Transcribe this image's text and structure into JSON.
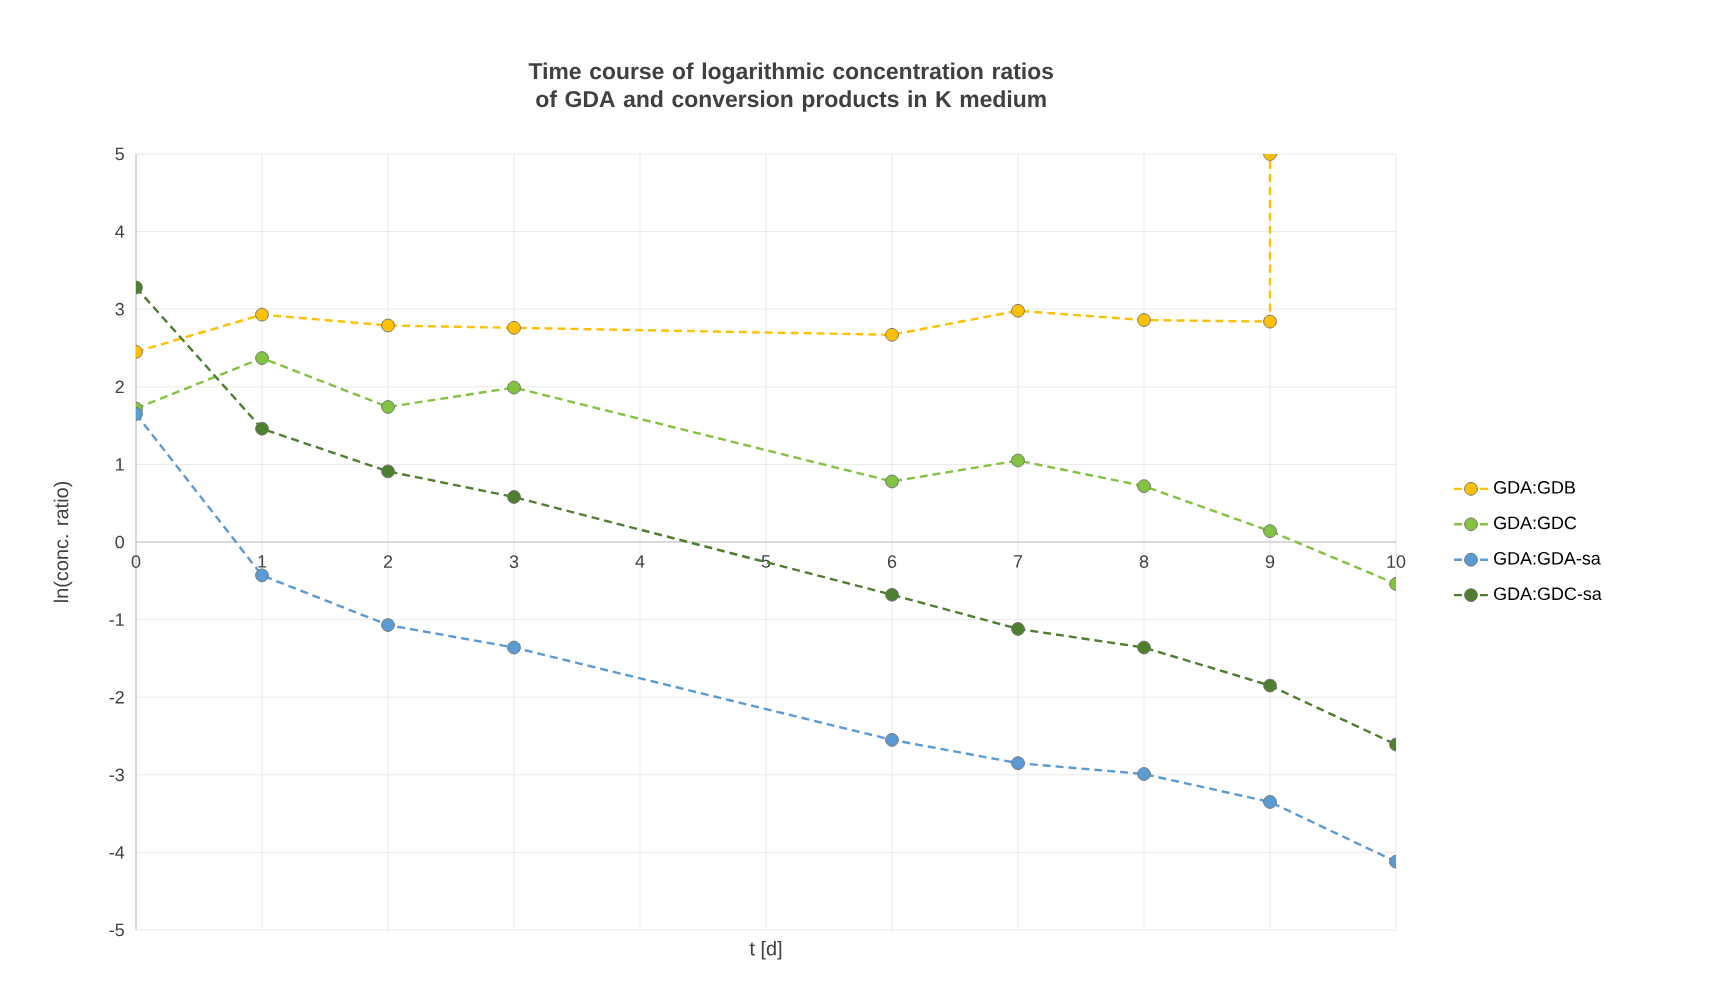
{
  "chart_data": {
    "type": "line",
    "title": "Time course of logarithmic concentration ratios of GDA and conversion products in K medium",
    "xlabel": "t [d]",
    "ylabel": "ln(conc. ratio)",
    "xlim": [
      0,
      10
    ],
    "xticks": [
      0,
      1,
      2,
      3,
      4,
      5,
      6,
      7,
      8,
      9,
      10
    ],
    "ylim": [
      -5,
      5
    ],
    "yticks": [
      -5,
      -4,
      -3,
      -2,
      -1,
      0,
      1,
      2,
      3,
      4,
      5
    ],
    "grid": true,
    "legend": "right",
    "marker": "circle",
    "line_style": "dashed",
    "series": [
      {
        "name": "GDA:GDB",
        "color": "#ffc000",
        "x": [
          0,
          1,
          2,
          3,
          6,
          7,
          8,
          9,
          9
        ],
        "values": [
          2.45,
          2.93,
          2.79,
          2.76,
          2.67,
          2.98,
          2.86,
          2.84,
          5
        ]
      },
      {
        "name": "GDA:GDC",
        "color": "#82c341",
        "x": [
          0,
          1,
          2,
          3,
          6,
          7,
          8,
          9,
          10
        ],
        "values": [
          1.72,
          2.37,
          1.74,
          1.99,
          0.78,
          1.05,
          0.72,
          0.14,
          -0.54
        ]
      },
      {
        "name": "GDA:GDA-sa",
        "color": "#5b9bd5",
        "x": [
          0,
          1,
          2,
          3,
          6,
          7,
          8,
          9,
          10
        ],
        "values": [
          1.65,
          -0.43,
          -1.07,
          -1.36,
          -2.55,
          -2.85,
          -2.99,
          -3.35,
          -4.12
        ]
      },
      {
        "name": "GDA:GDC-sa",
        "color": "#4e7f2e",
        "x": [
          0,
          1,
          2,
          3,
          6,
          7,
          8,
          9,
          10
        ],
        "values": [
          3.28,
          1.46,
          0.91,
          0.58,
          -0.68,
          -1.12,
          -1.36,
          -1.85,
          -2.61
        ]
      }
    ]
  }
}
